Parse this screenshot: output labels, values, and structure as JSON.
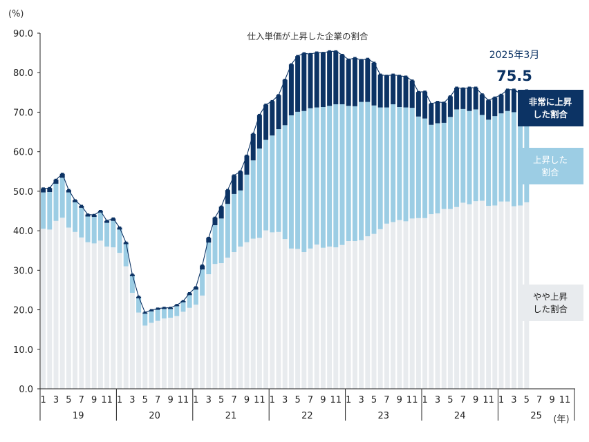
{
  "colors": {
    "light": "#e8ebee",
    "mid": "#9ccde4",
    "dark": "#0c3364",
    "line": "#0c3364",
    "axis": "#222222"
  },
  "chart_data": {
    "type": "bar",
    "subtype": "stacked",
    "title": "仕入単価が上昇した企業の割合",
    "ylabel": "(%)",
    "xlabel": "(年)",
    "ylim": [
      0,
      90
    ],
    "yticks": [
      "0.0",
      "10.0",
      "20.0",
      "30.0",
      "40.0",
      "50.0",
      "60.0",
      "70.0",
      "80.0",
      "90.0"
    ],
    "month_ticks": [
      "1",
      "3",
      "5",
      "7",
      "9",
      "11"
    ],
    "years": [
      "19",
      "20",
      "21",
      "22",
      "23",
      "24",
      "25"
    ],
    "highlight": {
      "label": "2025年3月",
      "value": "75.5"
    },
    "series": [
      {
        "name": "やや上昇した割合",
        "color": "#e8ebee",
        "values": [
          40.5,
          40.3,
          42.5,
          43.3,
          40.8,
          39.7,
          38.3,
          37.1,
          36.8,
          37.5,
          36.0,
          35.8,
          34.4,
          31.0,
          24.3,
          19.3,
          16.0,
          16.7,
          17.2,
          17.8,
          18.0,
          18.4,
          19.5,
          20.5,
          21.3,
          23.6,
          29.0,
          31.6,
          31.8,
          33.2,
          34.6,
          36.0,
          37.1,
          38.0,
          38.2,
          40.1,
          39.6,
          39.7,
          37.9,
          35.5,
          35.4,
          34.6,
          35.5,
          36.5,
          35.7,
          36.0,
          35.8,
          36.4,
          37.4,
          37.4,
          37.6,
          38.6,
          39.2,
          40.4,
          41.8,
          42.2,
          42.7,
          42.4,
          43.1,
          43.2,
          43.2,
          44.2,
          44.4,
          45.5,
          45.5,
          46.0,
          47.1,
          46.7,
          47.5,
          47.6,
          46.3,
          46.4,
          47.4,
          47.4,
          46.2,
          46.4,
          47.2
        ],
        "label_box_color": "#e8ebee"
      },
      {
        "name": "上昇した割合",
        "color": "#9ccde4",
        "values": [
          9.2,
          9.5,
          9.4,
          10.1,
          8.9,
          7.5,
          7.5,
          6.5,
          6.7,
          7.1,
          6.0,
          6.7,
          5.9,
          5.6,
          4.2,
          3.6,
          3.0,
          2.9,
          2.8,
          2.4,
          2.2,
          2.5,
          2.4,
          3.2,
          3.8,
          6.6,
          8.0,
          9.8,
          11.3,
          13.6,
          14.7,
          14.2,
          17.1,
          19.8,
          22.6,
          22.9,
          24.5,
          26.0,
          28.8,
          33.7,
          34.7,
          35.7,
          35.5,
          34.7,
          35.6,
          35.6,
          36.2,
          35.6,
          34.2,
          34.1,
          35.0,
          34.0,
          32.5,
          30.8,
          29.4,
          29.8,
          28.6,
          28.8,
          28.0,
          25.7,
          25.2,
          22.6,
          22.8,
          21.8,
          23.3,
          24.7,
          23.7,
          23.6,
          23.2,
          21.7,
          21.8,
          22.6,
          22.3,
          22.9,
          23.8,
          22.6,
          22.7
        ],
        "label_box_color": "#9ccde4"
      },
      {
        "name": "非常に上昇した割合",
        "color": "#0c3364",
        "values": [
          1.0,
          1.0,
          1.0,
          1.0,
          0.6,
          0.5,
          0.5,
          0.5,
          0.5,
          0.4,
          0.5,
          0.6,
          0.5,
          0.4,
          0.4,
          0.4,
          0.3,
          0.3,
          0.3,
          0.3,
          0.3,
          0.3,
          0.3,
          0.5,
          0.6,
          1.0,
          1.2,
          1.9,
          3.0,
          3.5,
          4.7,
          4.8,
          4.8,
          6.7,
          8.5,
          8.9,
          8.7,
          8.6,
          11.5,
          12.9,
          14.1,
          14.6,
          13.7,
          13.9,
          13.7,
          13.8,
          13.4,
          12.5,
          11.7,
          12.2,
          10.6,
          10.9,
          10.8,
          8.3,
          8.0,
          7.5,
          7.9,
          7.8,
          6.9,
          6.2,
          6.8,
          5.3,
          5.4,
          5.1,
          5.2,
          5.5,
          5.2,
          5.9,
          5.5,
          5.2,
          4.9,
          4.7,
          4.7,
          5.4,
          5.7,
          5.7,
          5.6
        ],
        "label_box_color": "#0c3364"
      }
    ],
    "total": [
      50.7,
      50.8,
      52.9,
      54.4,
      50.3,
      47.7,
      46.3,
      44.1,
      44.0,
      45.0,
      42.5,
      43.1,
      40.8,
      37.0,
      28.9,
      23.3,
      19.3,
      19.9,
      20.3,
      20.5,
      20.5,
      21.2,
      22.2,
      24.2,
      25.7,
      31.2,
      38.2,
      43.3,
      46.1,
      50.3,
      54.0,
      55.0,
      59.0,
      64.5,
      69.3,
      71.9,
      72.8,
      74.3,
      78.2,
      82.1,
      84.2,
      84.9,
      84.7,
      85.1,
      85.0,
      85.4,
      85.4,
      84.5,
      83.3,
      83.7,
      83.2,
      83.5,
      82.5,
      79.5,
      79.2,
      79.5,
      79.2,
      79.0,
      78.0,
      75.1,
      75.2,
      72.1,
      72.6,
      72.4,
      74.0,
      76.2,
      76.0,
      76.2,
      76.2,
      74.5,
      73.0,
      73.7,
      74.4,
      75.7,
      75.7,
      74.7,
      75.5
    ]
  }
}
